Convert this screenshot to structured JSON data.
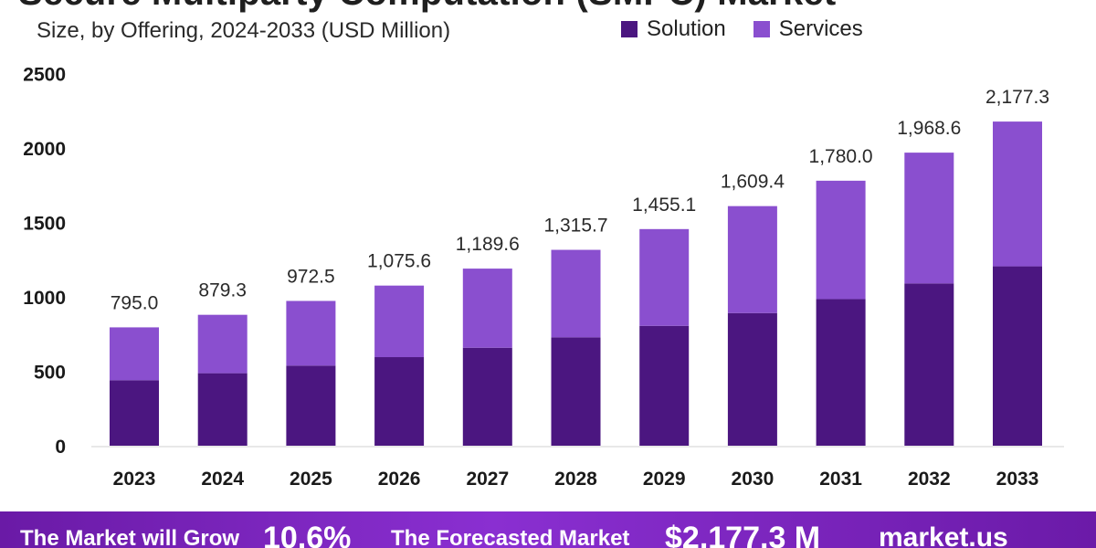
{
  "colors": {
    "solution": "#4b1680",
    "services": "#8a4fcf",
    "axis_text": "#1a1a1a",
    "label_text": "#2a2a2a"
  },
  "header": {
    "title": "Secure Multiparty Computation (SMPC) Market",
    "subtitle": "Size, by Offering, 2024-2033 (USD Million)"
  },
  "legend": {
    "items": [
      {
        "label": "Solution"
      },
      {
        "label": "Services"
      }
    ]
  },
  "footer": {
    "grow_text": "The Market will Grow",
    "cagr": "10.6%",
    "forecast_text": "The Forecasted Market",
    "value": "$2,177.3 M",
    "brand": "market.us"
  },
  "chart_data": {
    "type": "bar",
    "stacked": true,
    "categories": [
      "2023",
      "2024",
      "2025",
      "2026",
      "2027",
      "2028",
      "2029",
      "2030",
      "2031",
      "2032",
      "2033"
    ],
    "series": [
      {
        "name": "Solution",
        "values": [
          440,
          487,
          538,
          595,
          658,
          728,
          805,
          891,
          985,
          1090,
          1205
        ]
      },
      {
        "name": "Services",
        "values": [
          355,
          392.3,
          434.5,
          480.6,
          531.6,
          587.7,
          650.1,
          718.4,
          795,
          878.6,
          972.3
        ]
      }
    ],
    "totals": [
      "795.0",
      "879.3",
      "972.5",
      "1,075.6",
      "1,189.6",
      "1,315.7",
      "1,455.1",
      "1,609.4",
      "1,780.0",
      "1,968.6",
      "2,177.3"
    ],
    "ylim": [
      0,
      2500
    ],
    "yticks": [
      "0",
      "500",
      "1000",
      "1500",
      "2000",
      "2500"
    ],
    "title": "Secure Multiparty Computation (SMPC) Market",
    "subtitle": "Size, by Offering, 2024-2033 (USD Million)",
    "legend_position": "top-right",
    "grid": false
  }
}
